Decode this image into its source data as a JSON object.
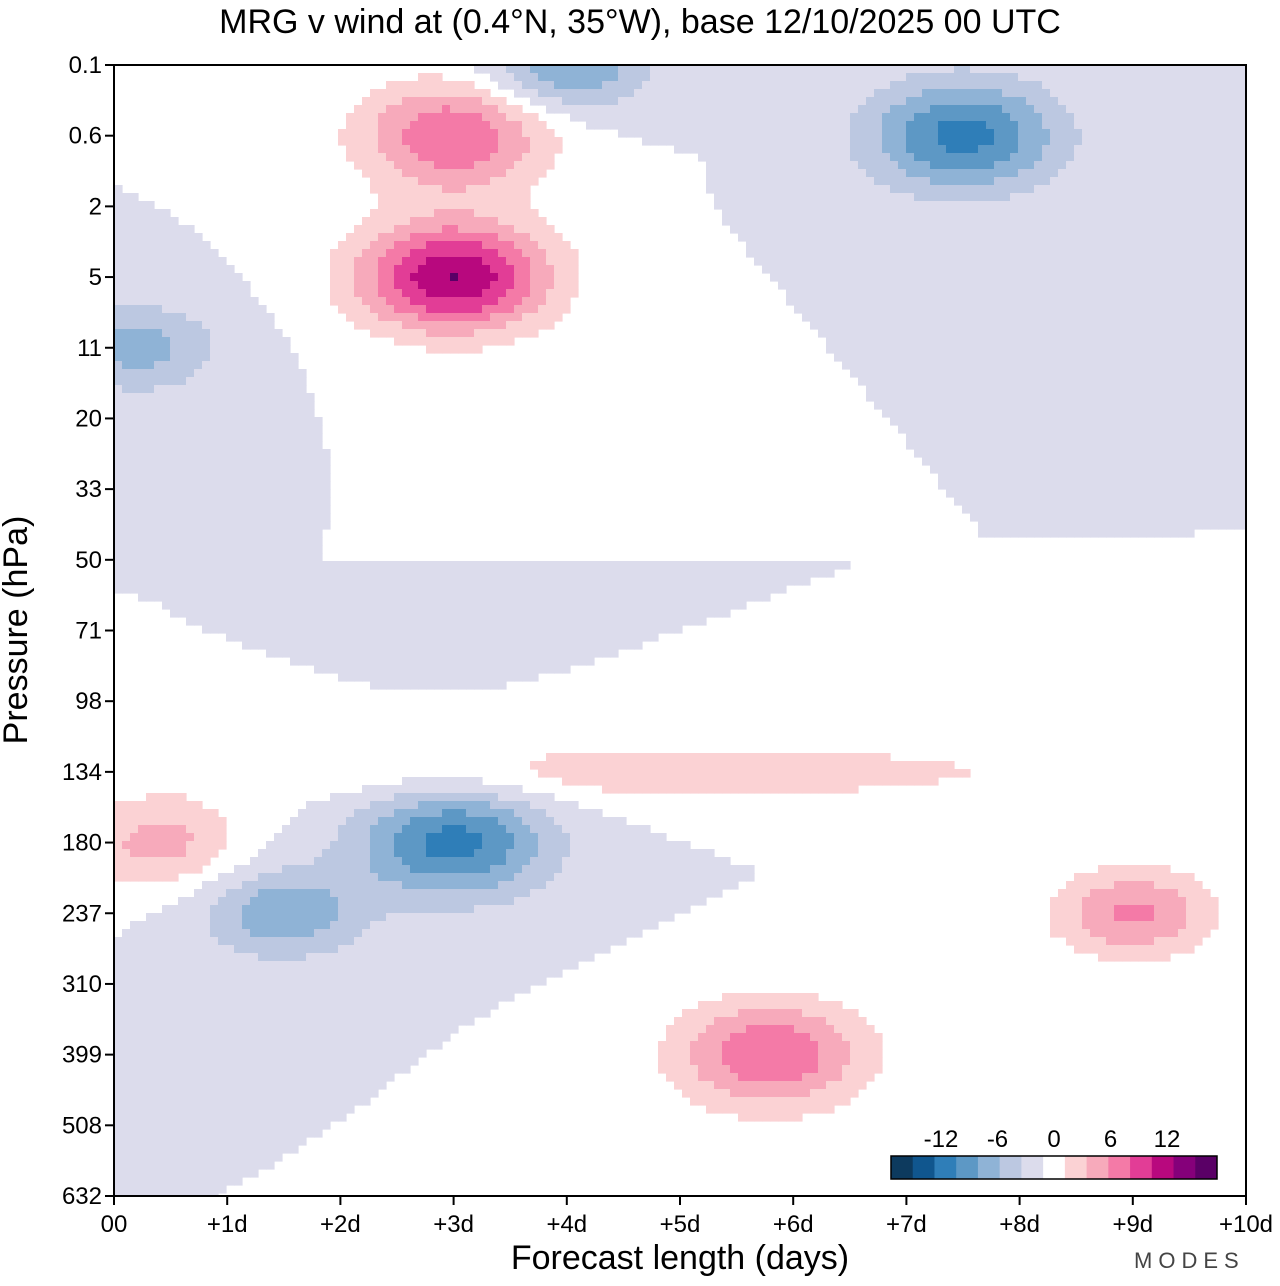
{
  "chart_data": {
    "type": "heatmap",
    "title": "MRG v wind at (0.4°N, 35°W),  base 12/10/2025  00 UTC",
    "xlabel": "Forecast length (days)",
    "ylabel": "Pressure (hPa)",
    "x_ticks": [
      "00",
      "+1d",
      "+2d",
      "+3d",
      "+4d",
      "+5d",
      "+6d",
      "+7d",
      "+8d",
      "+9d",
      "+10d"
    ],
    "y_ticks": [
      "0.1",
      "0.6",
      "2",
      "5",
      "11",
      "20",
      "33",
      "50",
      "71",
      "98",
      "134",
      "180",
      "237",
      "310",
      "399",
      "508",
      "632"
    ],
    "xlim": [
      0,
      10
    ],
    "colorbar": {
      "levels": [
        -15,
        -12.5,
        -10,
        -7.5,
        -5,
        -2.5,
        0,
        2.5,
        5,
        7.5,
        10,
        12.5,
        15
      ],
      "labels": [
        "-12",
        "-6",
        "0",
        "6",
        "12"
      ],
      "label_values": [
        -12,
        -6,
        0,
        6,
        12
      ],
      "colors": [
        "#0d3a5e",
        "#10568e",
        "#2f7eb8",
        "#5d98c5",
        "#8fb3d6",
        "#bcc8e1",
        "#dcdcec",
        "#ffffff",
        "#fbd2d4",
        "#f7aabb",
        "#f47aa7",
        "#e23d96",
        "#b8087e",
        "#85007a",
        "#5a0066"
      ]
    },
    "features": [
      {
        "name": "negative max 150-200hPa",
        "day": 3.0,
        "level": "180",
        "value": -11
      },
      {
        "name": "negative 237hPa",
        "day": 1.5,
        "level": "237",
        "value": -7
      },
      {
        "name": "positive max 310-399hPa",
        "day": 5.8,
        "level": "399",
        "value": 10
      },
      {
        "name": "positive 180-237hPa",
        "day": 9.0,
        "level": "237",
        "value": 8
      },
      {
        "name": "positive 134-180hPa",
        "day": 0.4,
        "level": "180",
        "value": 6
      },
      {
        "name": "positive band 71-134hPa",
        "day": 5.0,
        "level": "134",
        "value": 4
      },
      {
        "name": "positive max 5hPa",
        "day": 3.0,
        "level": "5",
        "value": 15
      },
      {
        "name": "positive 0.6hPa",
        "day": 3.0,
        "level": "0.6",
        "value": 10
      },
      {
        "name": "negative 0.6-2hPa",
        "day": 7.5,
        "level": "0.6",
        "value": -11
      },
      {
        "name": "negative 0.1hPa",
        "day": 4.0,
        "level": "0.1",
        "value": -8
      },
      {
        "name": "negative 11hPa",
        "day": 0.2,
        "level": "11",
        "value": -6
      }
    ]
  },
  "brand": "MODES"
}
